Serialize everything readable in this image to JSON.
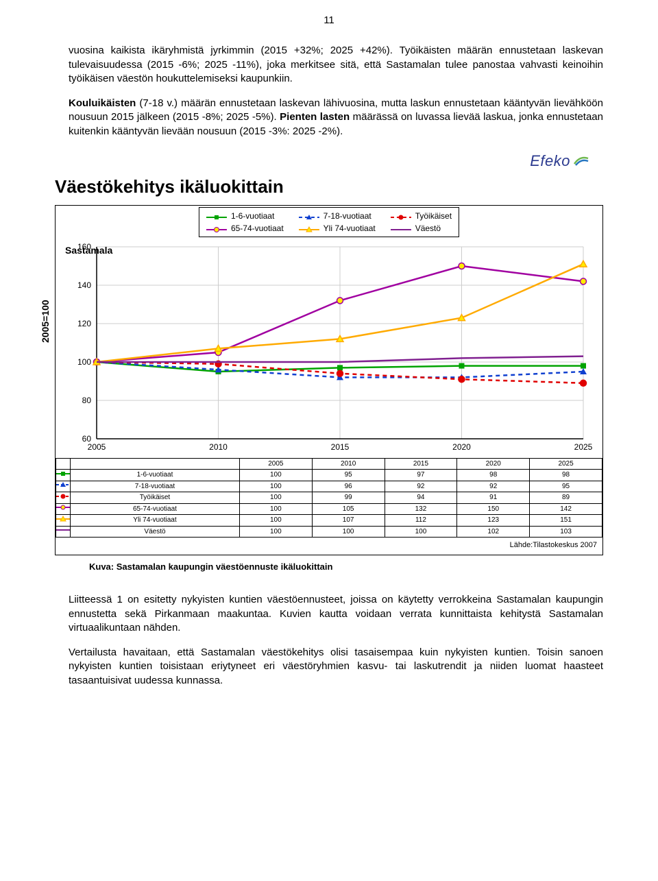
{
  "page_number": "11",
  "paragraph_1": "vuosina kaikista ikäryhmistä jyrkimmin (2015 +32%; 2025 +42%). Työikäisten määrän ennustetaan laskevan tulevaisuudessa (2015 -6%; 2025 -11%), joka merkitsee sitä, että Sastamalan tulee panostaa vahvasti keinoihin työikäisen väestön houkuttelemiseksi kaupunkiin.",
  "paragraph_2_a": "Kouluikäisten",
  "paragraph_2_b": " (7-18 v.) määrän ennustetaan laskevan lähivuosina, mutta laskun ennustetaan kääntyvän lievähköön nousuun 2015 jälkeen (2015 -8%; 2025 -5%). ",
  "paragraph_2_c": "Pienten lasten",
  "paragraph_2_d": " määrässä on luvassa lievää laskua, jonka ennustetaan kuitenkin kääntyvän lievään nousuun (2015 -3%: 2025 -2%).",
  "logo_text": "Efeko",
  "chart_title": "Väestökehitys ikäluokittain",
  "region_label": "Sastamala",
  "ylabel": "2005=100",
  "legend": {
    "s1": "1-6-vuotiaat",
    "s2": "7-18-vuotiaat",
    "s3": "Työikäiset",
    "s4": "65-74-vuotiaat",
    "s5": "Yli 74-vuotiaat",
    "s6": "Väestö"
  },
  "chart": {
    "xlabels": [
      "2005",
      "2010",
      "2015",
      "2020",
      "2025"
    ],
    "ylim": [
      60,
      160
    ],
    "yticks": [
      60,
      80,
      100,
      120,
      140,
      160
    ],
    "series": [
      {
        "name": "1-6-vuotiaat",
        "color": "#00a300",
        "marker": "square",
        "dash": "none",
        "vals": [
          100,
          95,
          97,
          98,
          98
        ]
      },
      {
        "name": "7-18-vuotiaat",
        "color": "#1040d0",
        "marker": "triangle",
        "dash": "6 5",
        "vals": [
          100,
          96,
          92,
          92,
          95
        ]
      },
      {
        "name": "Työikäiset",
        "color": "#e00000",
        "marker": "circle",
        "dash": "6 5",
        "vals": [
          100,
          99,
          94,
          91,
          89
        ]
      },
      {
        "name": "65-74-vuotiaat",
        "color": "#a000a0",
        "marker": "circle",
        "dash": "none",
        "vals": [
          100,
          105,
          132,
          150,
          142
        ]
      },
      {
        "name": "Yli 74-vuotiaat",
        "color": "#ffaa00",
        "marker": "otri",
        "dash": "none",
        "vals": [
          100,
          107,
          112,
          123,
          151
        ]
      },
      {
        "name": "Väestö",
        "color": "#802090",
        "marker": "none",
        "dash": "none",
        "vals": [
          100,
          100,
          100,
          102,
          103
        ]
      }
    ],
    "table_rows": [
      [
        "1-6-vuotiaat",
        "100",
        "95",
        "97",
        "98",
        "98"
      ],
      [
        "7-18-vuotiaat",
        "100",
        "96",
        "92",
        "92",
        "95"
      ],
      [
        "Työikäiset",
        "100",
        "99",
        "94",
        "91",
        "89"
      ],
      [
        "65-74-vuotiaat",
        "100",
        "105",
        "132",
        "150",
        "142"
      ],
      [
        "Yli 74-vuotiaat",
        "100",
        "107",
        "112",
        "123",
        "151"
      ],
      [
        "Väestö",
        "100",
        "100",
        "100",
        "102",
        "103"
      ]
    ],
    "background": "#ffffff",
    "grid_color": "#cccccc"
  },
  "source_text": "Lähde:Tilastokeskus 2007",
  "caption": "Kuva: Sastamalan kaupungin väestöennuste ikäluokittain",
  "paragraph_3": "Liitteessä 1 on esitetty nykyisten kuntien väestöennusteet, joissa on käytetty verrokkeina Sastamalan kaupungin ennustetta sekä Pirkanmaan maakuntaa. Kuvien kautta voidaan verrata kunnittaista kehitystä Sastamalan virtuaalikuntaan nähden.",
  "paragraph_4": "Vertailusta havaitaan, että Sastamalan väestökehitys olisi tasaisempaa kuin nykyisten kuntien. Toisin sanoen nykyisten kuntien toisistaan eriytyneet eri väestöryhmien kasvu- tai laskutrendit ja niiden luomat haasteet tasaantuisivat uudessa kunnassa."
}
